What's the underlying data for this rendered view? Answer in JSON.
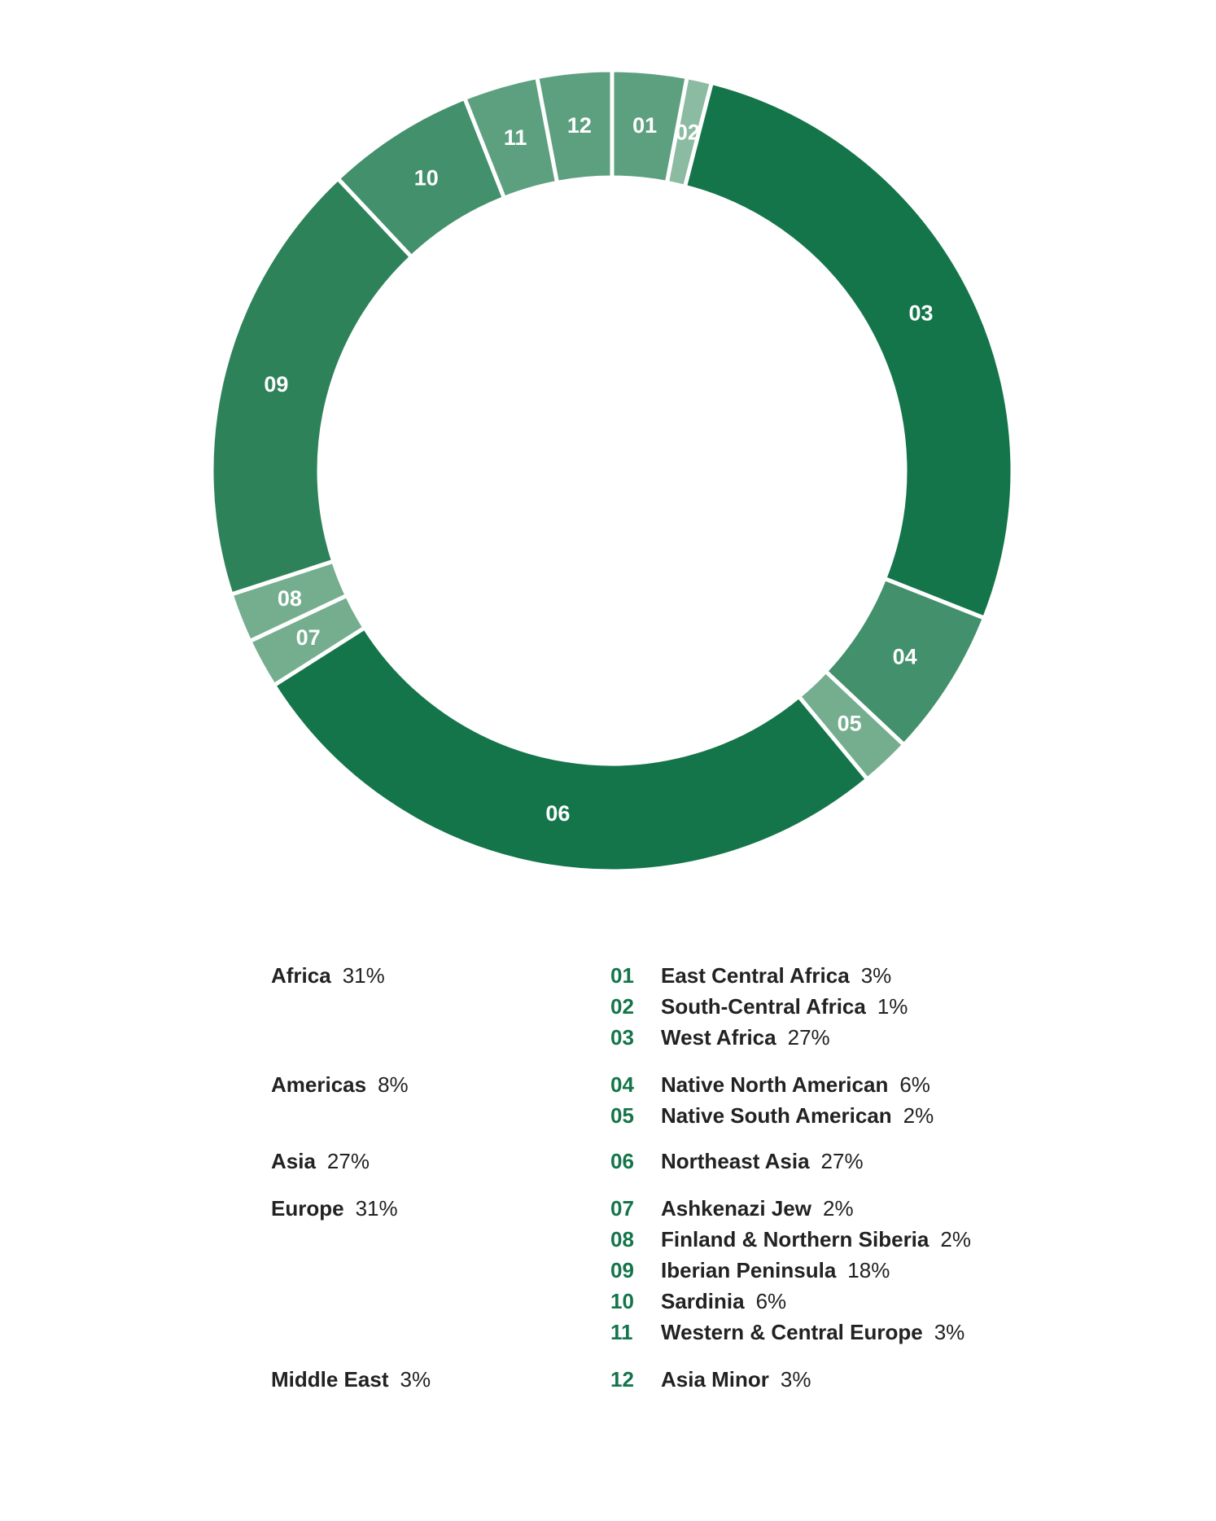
{
  "colors": {
    "dark": "#14754a",
    "medium": "#43906c",
    "light": "#5da07f",
    "lighter": "#74ae8f",
    "lightest": "#8bbba1",
    "code_text": "#14754a",
    "body_text": "#222222"
  },
  "chart_data": {
    "type": "pie",
    "subtype": "donut",
    "start_angle_deg": 0,
    "direction": "clockwise",
    "slices": [
      {
        "code": "01",
        "name": "East Central Africa",
        "value": 3,
        "pct": "3%",
        "group": "Africa",
        "color": "#5da07f"
      },
      {
        "code": "02",
        "name": "South-Central Africa",
        "value": 1,
        "pct": "1%",
        "group": "Africa",
        "color": "#8bbba1"
      },
      {
        "code": "03",
        "name": "West Africa",
        "value": 27,
        "pct": "27%",
        "group": "Africa",
        "color": "#14754a"
      },
      {
        "code": "04",
        "name": "Native North American",
        "value": 6,
        "pct": "6%",
        "group": "Americas",
        "color": "#43906c"
      },
      {
        "code": "05",
        "name": "Native South American",
        "value": 2,
        "pct": "2%",
        "group": "Americas",
        "color": "#74ae8f"
      },
      {
        "code": "06",
        "name": "Northeast Asia",
        "value": 27,
        "pct": "27%",
        "group": "Asia",
        "color": "#14754a"
      },
      {
        "code": "07",
        "name": "Ashkenazi Jew",
        "value": 2,
        "pct": "2%",
        "group": "Europe",
        "color": "#74ae8f"
      },
      {
        "code": "08",
        "name": "Finland & Northern Siberia",
        "value": 2,
        "pct": "2%",
        "group": "Europe",
        "color": "#74ae8f"
      },
      {
        "code": "09",
        "name": "Iberian Peninsula",
        "value": 18,
        "pct": "18%",
        "group": "Europe",
        "color": "#2e8259"
      },
      {
        "code": "10",
        "name": "Sardinia",
        "value": 6,
        "pct": "6%",
        "group": "Europe",
        "color": "#43906c"
      },
      {
        "code": "11",
        "name": "Western & Central Europe",
        "value": 3,
        "pct": "3%",
        "group": "Europe",
        "color": "#5da07f"
      },
      {
        "code": "12",
        "name": "Asia Minor",
        "value": 3,
        "pct": "3%",
        "group": "Middle East",
        "color": "#5da07f"
      }
    ],
    "groups": [
      {
        "name": "Africa",
        "pct": "31%"
      },
      {
        "name": "Americas",
        "pct": "8%"
      },
      {
        "name": "Asia",
        "pct": "27%"
      },
      {
        "name": "Europe",
        "pct": "31%"
      },
      {
        "name": "Middle East",
        "pct": "3%"
      }
    ]
  }
}
